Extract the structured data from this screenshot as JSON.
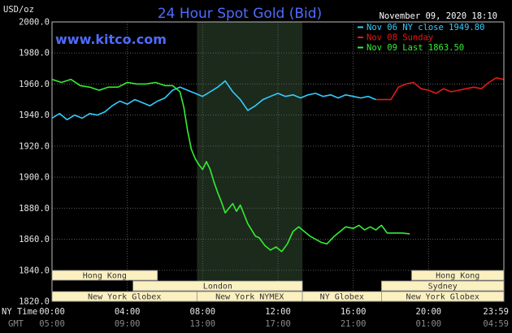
{
  "header": {
    "unit": "USD/oz",
    "title": "24 Hour Spot Gold (Bid)",
    "datetime": "November 09, 2020 18:10",
    "source": "www.kitco.com"
  },
  "axis_row_labels": {
    "ny_time": "NY Time",
    "gmt": "GMT"
  },
  "colors": {
    "background": "#000000",
    "grid": "#5a5a5a",
    "highlight": "#1c2a1c",
    "title": "#4f6bff",
    "text": "#ffffff",
    "session_fill": "#fbf0c0",
    "session_text": "#333333",
    "axis_text": "#e6e6e6",
    "gmt_text": "#8a8a8a"
  },
  "chart_data": {
    "type": "line",
    "title": "24 Hour Spot Gold (Bid)",
    "ylabel": "USD/oz",
    "ylim": [
      1820,
      2000
    ],
    "xlim": [
      0,
      24
    ],
    "grid": true,
    "legend_position": "top-right",
    "y_ticks": [
      "2000.0",
      "1980.0",
      "1960.0",
      "1940.0",
      "1920.0",
      "1900.0",
      "1880.0",
      "1860.0",
      "1840.0",
      "1820.0"
    ],
    "x_ticks_ny": [
      "00:00",
      "04:00",
      "08:00",
      "12:00",
      "16:00",
      "20:00",
      "23:59"
    ],
    "x_ticks_gmt": [
      "05:00",
      "09:00",
      "13:00",
      "17:00",
      "21:00",
      "01:00",
      "04:59"
    ],
    "highlight_range": [
      7.7,
      13.3
    ],
    "series": [
      {
        "name": "Nov 06 NY close 1949.80",
        "color": "#33ccff",
        "points": [
          [
            0,
            1938
          ],
          [
            0.4,
            1941
          ],
          [
            0.8,
            1937
          ],
          [
            1.2,
            1940
          ],
          [
            1.6,
            1938
          ],
          [
            2,
            1941
          ],
          [
            2.4,
            1940
          ],
          [
            2.8,
            1942
          ],
          [
            3.2,
            1946
          ],
          [
            3.6,
            1949
          ],
          [
            4,
            1947
          ],
          [
            4.4,
            1950
          ],
          [
            4.8,
            1948
          ],
          [
            5.2,
            1946
          ],
          [
            5.6,
            1949
          ],
          [
            6,
            1951
          ],
          [
            6.4,
            1956
          ],
          [
            6.8,
            1958
          ],
          [
            7.2,
            1956
          ],
          [
            7.6,
            1954
          ],
          [
            8,
            1952
          ],
          [
            8.4,
            1955
          ],
          [
            8.8,
            1958
          ],
          [
            9.2,
            1962
          ],
          [
            9.6,
            1955
          ],
          [
            10,
            1950
          ],
          [
            10.4,
            1943
          ],
          [
            10.8,
            1946
          ],
          [
            11.2,
            1950
          ],
          [
            11.6,
            1952
          ],
          [
            12,
            1954
          ],
          [
            12.4,
            1952
          ],
          [
            12.8,
            1953
          ],
          [
            13.2,
            1951
          ],
          [
            13.6,
            1953
          ],
          [
            14,
            1954
          ],
          [
            14.4,
            1952
          ],
          [
            14.8,
            1953
          ],
          [
            15.2,
            1951
          ],
          [
            15.6,
            1953
          ],
          [
            16,
            1952
          ],
          [
            16.4,
            1951
          ],
          [
            16.8,
            1952
          ],
          [
            17.2,
            1950
          ]
        ]
      },
      {
        "name": "Nov 08 Sunday",
        "color": "#e21a1a",
        "points": [
          [
            17.2,
            1950
          ],
          [
            18,
            1950
          ],
          [
            18.4,
            1958
          ],
          [
            18.8,
            1960
          ],
          [
            19.2,
            1961
          ],
          [
            19.6,
            1957
          ],
          [
            20,
            1956
          ],
          [
            20.4,
            1954
          ],
          [
            20.8,
            1957
          ],
          [
            21.2,
            1955
          ],
          [
            21.6,
            1956
          ],
          [
            22,
            1957
          ],
          [
            22.4,
            1958
          ],
          [
            22.8,
            1957
          ],
          [
            23.2,
            1961
          ],
          [
            23.6,
            1964
          ],
          [
            23.98,
            1963
          ]
        ]
      },
      {
        "name": "Nov 09 Last 1863.50",
        "color": "#33ee33",
        "points": [
          [
            0,
            1963
          ],
          [
            0.5,
            1961
          ],
          [
            1,
            1963
          ],
          [
            1.5,
            1959
          ],
          [
            2,
            1958
          ],
          [
            2.5,
            1956
          ],
          [
            3,
            1958
          ],
          [
            3.5,
            1958
          ],
          [
            4,
            1961
          ],
          [
            4.5,
            1960
          ],
          [
            5,
            1960
          ],
          [
            5.5,
            1961
          ],
          [
            6,
            1959
          ],
          [
            6.4,
            1959
          ],
          [
            6.8,
            1955
          ],
          [
            7,
            1945
          ],
          [
            7.2,
            1930
          ],
          [
            7.4,
            1918
          ],
          [
            7.6,
            1912
          ],
          [
            7.8,
            1908
          ],
          [
            8,
            1905
          ],
          [
            8.2,
            1910
          ],
          [
            8.4,
            1905
          ],
          [
            8.6,
            1897
          ],
          [
            8.8,
            1890
          ],
          [
            9,
            1884
          ],
          [
            9.2,
            1877
          ],
          [
            9.4,
            1880
          ],
          [
            9.6,
            1883
          ],
          [
            9.8,
            1878
          ],
          [
            10,
            1882
          ],
          [
            10.2,
            1876
          ],
          [
            10.4,
            1870
          ],
          [
            10.6,
            1866
          ],
          [
            10.8,
            1862
          ],
          [
            11,
            1861
          ],
          [
            11.3,
            1856
          ],
          [
            11.6,
            1853
          ],
          [
            11.9,
            1855
          ],
          [
            12.2,
            1852
          ],
          [
            12.5,
            1857
          ],
          [
            12.8,
            1865
          ],
          [
            13.1,
            1868
          ],
          [
            13.4,
            1865
          ],
          [
            13.7,
            1862
          ],
          [
            14,
            1860
          ],
          [
            14.3,
            1858
          ],
          [
            14.6,
            1857
          ],
          [
            15,
            1862
          ],
          [
            15.3,
            1865
          ],
          [
            15.6,
            1868
          ],
          [
            16,
            1867
          ],
          [
            16.3,
            1869
          ],
          [
            16.6,
            1866
          ],
          [
            16.9,
            1868
          ],
          [
            17.2,
            1866
          ],
          [
            17.5,
            1869
          ],
          [
            17.8,
            1864
          ],
          [
            18.2,
            1864
          ],
          [
            18.6,
            1864
          ],
          [
            19,
            1863.5
          ]
        ]
      }
    ]
  },
  "sessions": [
    {
      "name": "Hong Kong",
      "start": 0,
      "end": 5.6,
      "row": 1
    },
    {
      "name": "London",
      "start": 4.3,
      "end": 13.3,
      "row": 2
    },
    {
      "name": "New York Globex",
      "start": 0,
      "end": 7.7,
      "row": 3
    },
    {
      "name": "New York NYMEX",
      "start": 7.7,
      "end": 13.3,
      "row": 3
    },
    {
      "name": "NY Globex",
      "start": 13.3,
      "end": 17.5,
      "row": 3
    },
    {
      "name": "Hong Kong",
      "start": 19.1,
      "end": 24,
      "row": 1
    },
    {
      "name": "Sydney",
      "start": 17.5,
      "end": 24,
      "row": 2
    },
    {
      "name": "New York Globex",
      "start": 17.5,
      "end": 24,
      "row": 3
    }
  ]
}
